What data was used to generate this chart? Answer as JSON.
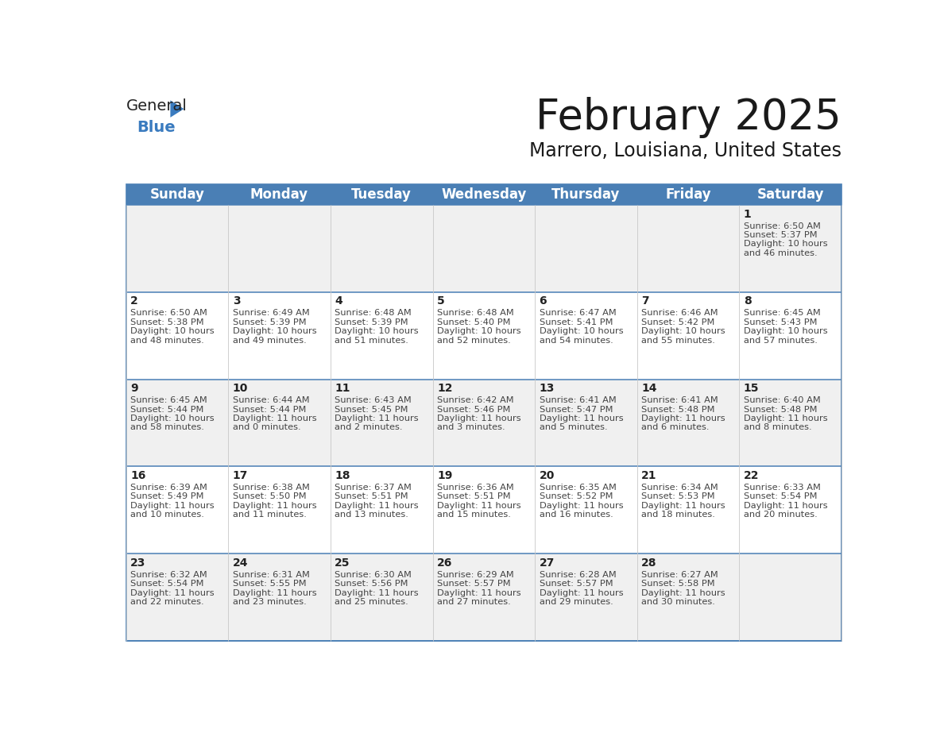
{
  "title": "February 2025",
  "subtitle": "Marrero, Louisiana, United States",
  "header_bg": "#4a7fb5",
  "header_text": "#ffffff",
  "row_bg_light": "#f0f0f0",
  "row_bg_white": "#ffffff",
  "separator_color": "#4a7fb5",
  "cell_border_color": "#cccccc",
  "day_headers": [
    "Sunday",
    "Monday",
    "Tuesday",
    "Wednesday",
    "Thursday",
    "Friday",
    "Saturday"
  ],
  "days": [
    {
      "date": 1,
      "col": 6,
      "row": 0,
      "sunrise": "6:50 AM",
      "sunset": "5:37 PM",
      "daylight_h": "10 hours",
      "daylight_m": "and 46 minutes."
    },
    {
      "date": 2,
      "col": 0,
      "row": 1,
      "sunrise": "6:50 AM",
      "sunset": "5:38 PM",
      "daylight_h": "10 hours",
      "daylight_m": "and 48 minutes."
    },
    {
      "date": 3,
      "col": 1,
      "row": 1,
      "sunrise": "6:49 AM",
      "sunset": "5:39 PM",
      "daylight_h": "10 hours",
      "daylight_m": "and 49 minutes."
    },
    {
      "date": 4,
      "col": 2,
      "row": 1,
      "sunrise": "6:48 AM",
      "sunset": "5:39 PM",
      "daylight_h": "10 hours",
      "daylight_m": "and 51 minutes."
    },
    {
      "date": 5,
      "col": 3,
      "row": 1,
      "sunrise": "6:48 AM",
      "sunset": "5:40 PM",
      "daylight_h": "10 hours",
      "daylight_m": "and 52 minutes."
    },
    {
      "date": 6,
      "col": 4,
      "row": 1,
      "sunrise": "6:47 AM",
      "sunset": "5:41 PM",
      "daylight_h": "10 hours",
      "daylight_m": "and 54 minutes."
    },
    {
      "date": 7,
      "col": 5,
      "row": 1,
      "sunrise": "6:46 AM",
      "sunset": "5:42 PM",
      "daylight_h": "10 hours",
      "daylight_m": "and 55 minutes."
    },
    {
      "date": 8,
      "col": 6,
      "row": 1,
      "sunrise": "6:45 AM",
      "sunset": "5:43 PM",
      "daylight_h": "10 hours",
      "daylight_m": "and 57 minutes."
    },
    {
      "date": 9,
      "col": 0,
      "row": 2,
      "sunrise": "6:45 AM",
      "sunset": "5:44 PM",
      "daylight_h": "10 hours",
      "daylight_m": "and 58 minutes."
    },
    {
      "date": 10,
      "col": 1,
      "row": 2,
      "sunrise": "6:44 AM",
      "sunset": "5:44 PM",
      "daylight_h": "11 hours",
      "daylight_m": "and 0 minutes."
    },
    {
      "date": 11,
      "col": 2,
      "row": 2,
      "sunrise": "6:43 AM",
      "sunset": "5:45 PM",
      "daylight_h": "11 hours",
      "daylight_m": "and 2 minutes."
    },
    {
      "date": 12,
      "col": 3,
      "row": 2,
      "sunrise": "6:42 AM",
      "sunset": "5:46 PM",
      "daylight_h": "11 hours",
      "daylight_m": "and 3 minutes."
    },
    {
      "date": 13,
      "col": 4,
      "row": 2,
      "sunrise": "6:41 AM",
      "sunset": "5:47 PM",
      "daylight_h": "11 hours",
      "daylight_m": "and 5 minutes."
    },
    {
      "date": 14,
      "col": 5,
      "row": 2,
      "sunrise": "6:41 AM",
      "sunset": "5:48 PM",
      "daylight_h": "11 hours",
      "daylight_m": "and 6 minutes."
    },
    {
      "date": 15,
      "col": 6,
      "row": 2,
      "sunrise": "6:40 AM",
      "sunset": "5:48 PM",
      "daylight_h": "11 hours",
      "daylight_m": "and 8 minutes."
    },
    {
      "date": 16,
      "col": 0,
      "row": 3,
      "sunrise": "6:39 AM",
      "sunset": "5:49 PM",
      "daylight_h": "11 hours",
      "daylight_m": "and 10 minutes."
    },
    {
      "date": 17,
      "col": 1,
      "row": 3,
      "sunrise": "6:38 AM",
      "sunset": "5:50 PM",
      "daylight_h": "11 hours",
      "daylight_m": "and 11 minutes."
    },
    {
      "date": 18,
      "col": 2,
      "row": 3,
      "sunrise": "6:37 AM",
      "sunset": "5:51 PM",
      "daylight_h": "11 hours",
      "daylight_m": "and 13 minutes."
    },
    {
      "date": 19,
      "col": 3,
      "row": 3,
      "sunrise": "6:36 AM",
      "sunset": "5:51 PM",
      "daylight_h": "11 hours",
      "daylight_m": "and 15 minutes."
    },
    {
      "date": 20,
      "col": 4,
      "row": 3,
      "sunrise": "6:35 AM",
      "sunset": "5:52 PM",
      "daylight_h": "11 hours",
      "daylight_m": "and 16 minutes."
    },
    {
      "date": 21,
      "col": 5,
      "row": 3,
      "sunrise": "6:34 AM",
      "sunset": "5:53 PM",
      "daylight_h": "11 hours",
      "daylight_m": "and 18 minutes."
    },
    {
      "date": 22,
      "col": 6,
      "row": 3,
      "sunrise": "6:33 AM",
      "sunset": "5:54 PM",
      "daylight_h": "11 hours",
      "daylight_m": "and 20 minutes."
    },
    {
      "date": 23,
      "col": 0,
      "row": 4,
      "sunrise": "6:32 AM",
      "sunset": "5:54 PM",
      "daylight_h": "11 hours",
      "daylight_m": "and 22 minutes."
    },
    {
      "date": 24,
      "col": 1,
      "row": 4,
      "sunrise": "6:31 AM",
      "sunset": "5:55 PM",
      "daylight_h": "11 hours",
      "daylight_m": "and 23 minutes."
    },
    {
      "date": 25,
      "col": 2,
      "row": 4,
      "sunrise": "6:30 AM",
      "sunset": "5:56 PM",
      "daylight_h": "11 hours",
      "daylight_m": "and 25 minutes."
    },
    {
      "date": 26,
      "col": 3,
      "row": 4,
      "sunrise": "6:29 AM",
      "sunset": "5:57 PM",
      "daylight_h": "11 hours",
      "daylight_m": "and 27 minutes."
    },
    {
      "date": 27,
      "col": 4,
      "row": 4,
      "sunrise": "6:28 AM",
      "sunset": "5:57 PM",
      "daylight_h": "11 hours",
      "daylight_m": "and 29 minutes."
    },
    {
      "date": 28,
      "col": 5,
      "row": 4,
      "sunrise": "6:27 AM",
      "sunset": "5:58 PM",
      "daylight_h": "11 hours",
      "daylight_m": "and 30 minutes."
    }
  ],
  "num_rows": 5,
  "num_cols": 7,
  "title_fontsize": 38,
  "subtitle_fontsize": 17,
  "header_fontsize": 12,
  "day_num_fontsize": 10,
  "info_fontsize": 8.2
}
